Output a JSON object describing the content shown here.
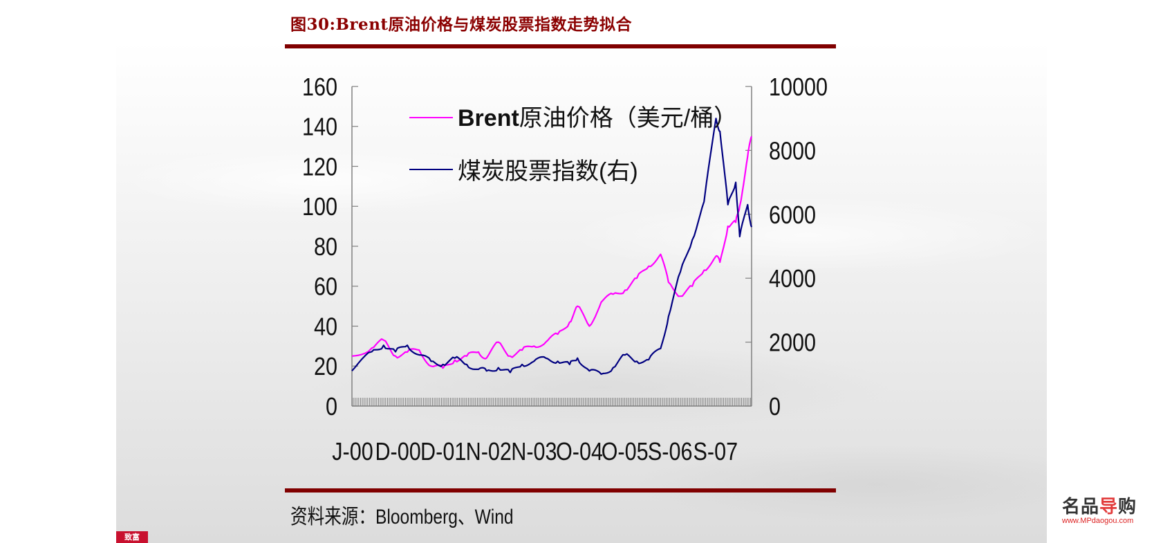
{
  "page": {
    "title": "图30:Brent原油价格与煤炭股票指数走势拟合",
    "source": "资料来源：Bloomberg、Wind",
    "watermark_logo": {
      "brand_prefix": "名品",
      "brand_accent": "导",
      "brand_suffix": "购",
      "url": "www.MPdaogou.com"
    },
    "stamp_text": "致富",
    "colors": {
      "title": "#8b0000",
      "rule": "#800000",
      "brent": "#ff00ff",
      "coal": "#000080"
    }
  },
  "chart_data": {
    "type": "line",
    "title": "Brent原油价格与煤炭股票指数走势拟合",
    "xlabel": "",
    "ylabel": "Brent原油价格（美元/桶）",
    "y2label": "煤炭股票指数",
    "x_tick_labels": [
      "J-00",
      "D-00",
      "D-01",
      "N-02",
      "N-03",
      "O-04",
      "O-05",
      "S-06",
      "S-07"
    ],
    "y_ticks": [
      0,
      20,
      40,
      60,
      80,
      100,
      120,
      140,
      160
    ],
    "y2_ticks": [
      0,
      2000,
      4000,
      6000,
      8000,
      10000
    ],
    "ylim": [
      0,
      160
    ],
    "y2lim": [
      0,
      10000
    ],
    "grid": false,
    "legend_position": "upper-left-inside",
    "x": [
      "2000-01",
      "2000-06",
      "2000-09",
      "2000-12",
      "2001-03",
      "2001-06",
      "2001-09",
      "2001-12",
      "2002-03",
      "2002-06",
      "2002-09",
      "2002-11",
      "2003-02",
      "2003-05",
      "2003-08",
      "2003-11",
      "2004-02",
      "2004-05",
      "2004-08",
      "2004-10",
      "2005-01",
      "2005-04",
      "2005-07",
      "2005-10",
      "2006-01",
      "2006-04",
      "2006-07",
      "2006-09",
      "2006-12",
      "2007-03",
      "2007-06",
      "2007-09",
      "2007-10",
      "2007-12",
      "2008-02",
      "2008-03",
      "2008-05",
      "2008-06"
    ],
    "series": [
      {
        "name": "Brent原油价格（美元/桶）",
        "axis": "left",
        "color": "#ff00ff",
        "values": [
          25,
          29,
          33,
          25,
          27,
          28,
          20,
          19,
          23,
          25,
          27,
          24,
          32,
          25,
          28,
          30,
          32,
          36,
          42,
          50,
          40,
          52,
          56,
          58,
          64,
          70,
          76,
          62,
          55,
          60,
          68,
          75,
          72,
          90,
          92,
          100,
          125,
          135
        ]
      },
      {
        "name": "煤炭股票指数(右)",
        "axis": "right",
        "color": "#000080",
        "values": [
          1100,
          1700,
          1900,
          1700,
          1900,
          1600,
          1400,
          1300,
          1500,
          1300,
          1150,
          1100,
          1200,
          1050,
          1300,
          1400,
          1500,
          1400,
          1300,
          1500,
          1100,
          1000,
          1200,
          1600,
          1400,
          1450,
          1800,
          2800,
          4200,
          5200,
          6400,
          9000,
          8600,
          6300,
          7000,
          5300,
          6300,
          5600
        ]
      }
    ]
  },
  "axes": {
    "left_ticks": [
      "160",
      "140",
      "120",
      "100",
      "80",
      "60",
      "40",
      "20",
      "0"
    ],
    "right_ticks": [
      "10000",
      "8000",
      "6000",
      "4000",
      "2000",
      "0"
    ],
    "x_labels": [
      "J-00",
      "D-00",
      "D-01",
      "N-02",
      "N-03",
      "O-04",
      "O-05",
      "S-06",
      "S-07"
    ]
  },
  "legend": {
    "brent_label_prefix": "Brent",
    "brent_label_suffix": "原油价格（美元/桶）",
    "coal_label": "煤炭股票指数(右)"
  }
}
